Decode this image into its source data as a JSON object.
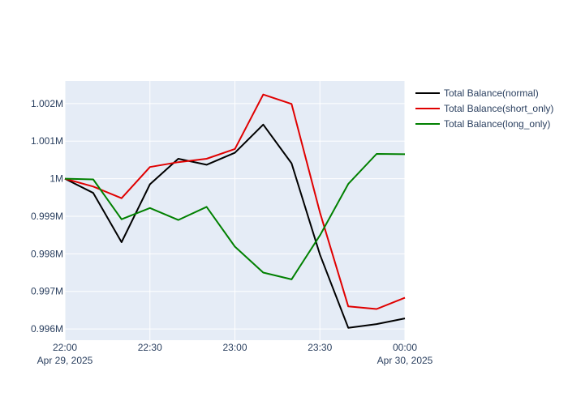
{
  "chart_data": {
    "type": "line",
    "x": [
      "2025-04-29 22:00",
      "2025-04-29 22:10",
      "2025-04-29 22:20",
      "2025-04-29 22:30",
      "2025-04-29 22:40",
      "2025-04-29 22:50",
      "2025-04-29 23:00",
      "2025-04-29 23:10",
      "2025-04-29 23:20",
      "2025-04-29 23:30",
      "2025-04-29 23:40",
      "2025-04-29 23:50",
      "2025-04-30 00:00"
    ],
    "series": [
      {
        "name": "Total Balance(normal)",
        "color": "#000000",
        "values": [
          1000000,
          999620,
          998310,
          999850,
          1000530,
          1000370,
          1000690,
          1001440,
          1000410,
          997980,
          996030,
          996130,
          996280
        ]
      },
      {
        "name": "Total Balance(short_only)",
        "color": "#e00000",
        "values": [
          1000000,
          999790,
          999480,
          1000310,
          1000440,
          1000530,
          1000790,
          1002240,
          1001990,
          999100,
          996600,
          996530,
          996830
        ]
      },
      {
        "name": "Total Balance(long_only)",
        "color": "#008000",
        "values": [
          1000000,
          999980,
          998920,
          999220,
          998900,
          999250,
          998190,
          997500,
          997320,
          998490,
          999860,
          1000660,
          1000650
        ]
      }
    ],
    "ylim": [
      995700,
      1002600
    ],
    "yticks": [
      996000,
      997000,
      998000,
      999000,
      1000000,
      1001000,
      1002000
    ],
    "ytick_labels": [
      "0.996M",
      "0.997M",
      "0.998M",
      "0.999M",
      "1M",
      "1.001M",
      "1.002M"
    ],
    "xticks": [
      {
        "pos": 0,
        "label": "22:00",
        "sublabel": "Apr 29, 2025"
      },
      {
        "pos": 3,
        "label": "22:30",
        "sublabel": ""
      },
      {
        "pos": 6,
        "label": "23:00",
        "sublabel": ""
      },
      {
        "pos": 9,
        "label": "23:30",
        "sublabel": ""
      },
      {
        "pos": 12,
        "label": "00:00",
        "sublabel": "Apr 30, 2025"
      }
    ],
    "grid": true,
    "legend_position": "top-right",
    "plot_bg": "#e5ecf6",
    "text_color": "#2a3f5f"
  }
}
